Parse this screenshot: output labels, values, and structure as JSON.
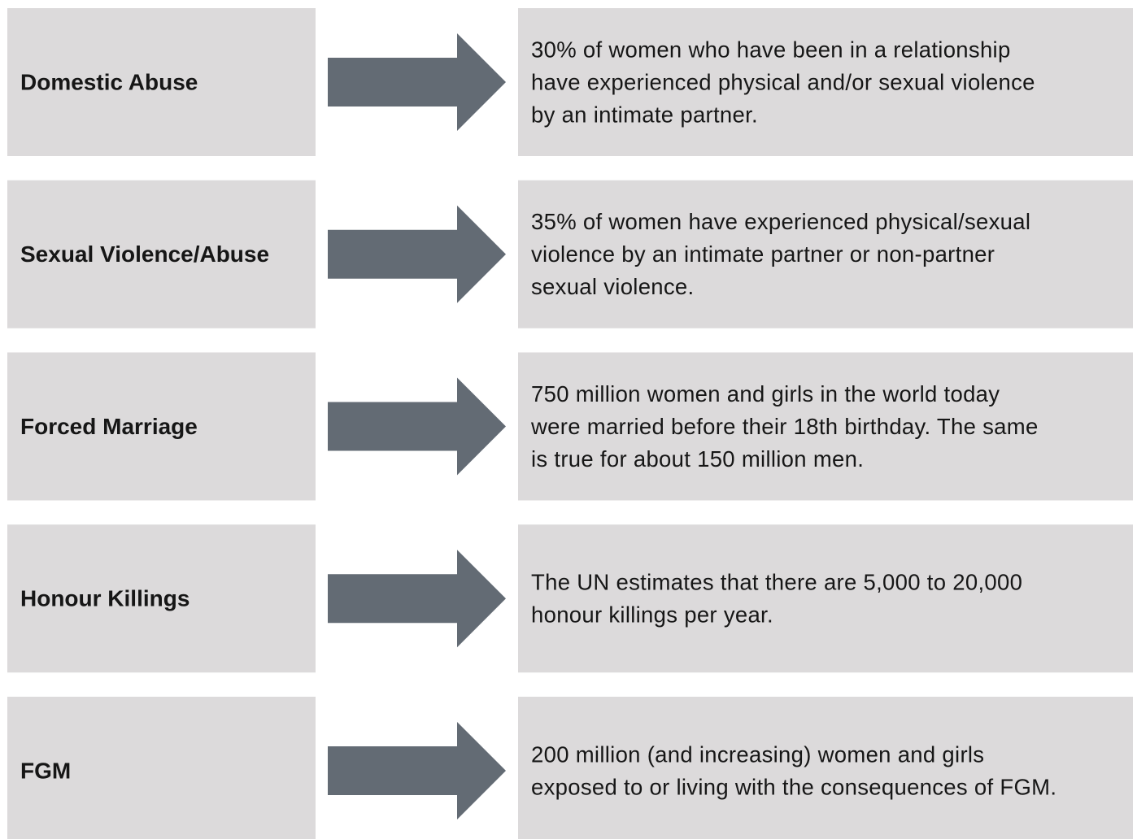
{
  "rows": [
    {
      "label": "Domestic Abuse",
      "lines": [
        "30% of women who have been in a relationship",
        "have experienced physical and/or sexual violence",
        "by an intimate partner."
      ]
    },
    {
      "label": "Sexual Violence/Abuse",
      "lines": [
        "35% of women have experienced physical/sexual",
        "violence by an intimate partner or non-partner",
        "sexual violence."
      ]
    },
    {
      "label": "Forced Marriage",
      "lines": [
        "750 million women and girls in the world today",
        "were married before their 18th birthday. The same",
        "is true for about 150 million men."
      ]
    },
    {
      "label": "Honour Killings",
      "lines": [
        "The UN estimates that there are 5,000 to 20,000",
        "honour killings per year."
      ]
    },
    {
      "label": "FGM",
      "lines": [
        "200 million (and increasing) women and girls",
        "exposed to or living with the consequences of FGM."
      ]
    }
  ]
}
